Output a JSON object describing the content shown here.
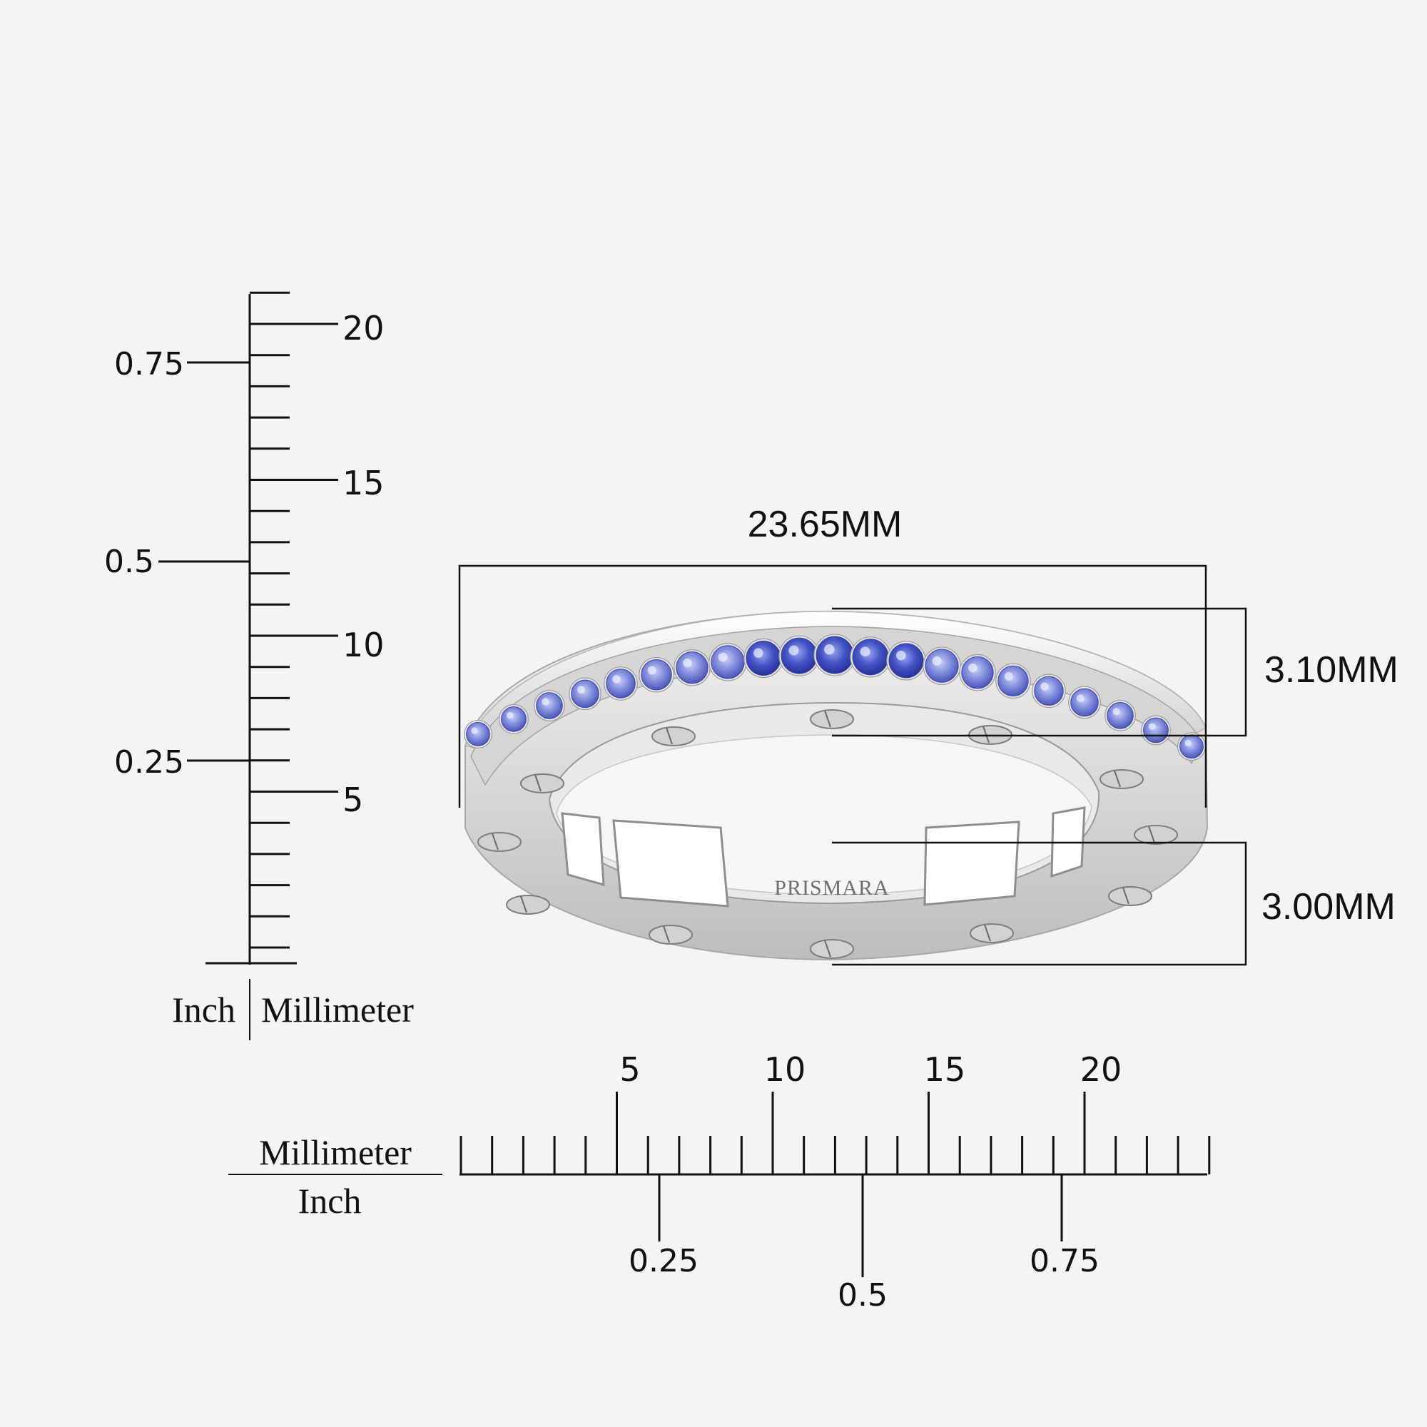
{
  "brand": "PRISMARA",
  "dimensions": {
    "width": "23.65MM",
    "band_top_width": "3.10MM",
    "band_height": "3.00MM"
  },
  "vertical_ruler": {
    "inch_label": "Inch",
    "mm_label": "Millimeter",
    "mm_ticks": [
      "5",
      "10",
      "15",
      "20"
    ],
    "inch_ticks": [
      "0.25",
      "0.5",
      "0.75"
    ]
  },
  "horizontal_ruler": {
    "mm_label": "Millimeter",
    "inch_label": "Inch",
    "mm_ticks": [
      "5",
      "10",
      "15",
      "20"
    ],
    "inch_ticks": [
      "0.25",
      "0.5",
      "0.75"
    ]
  },
  "colors": {
    "background": "#f4f4f4",
    "ink": "#111111",
    "metal": "#dcdcdc",
    "sapphire": "#6a78d6"
  }
}
